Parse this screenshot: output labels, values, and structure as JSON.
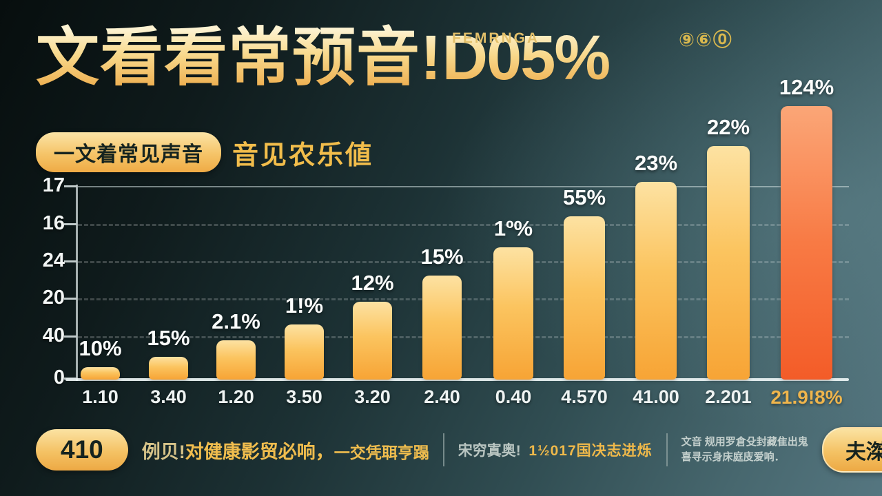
{
  "header": {
    "title_cn": "文看看常预音!",
    "title_latin": "D05%",
    "kicker": "FEMRNGA",
    "coins": "⑨⑥⓪"
  },
  "badge": {
    "pill": "一文着常见声音",
    "caption": "音见农乐値"
  },
  "chart_data": {
    "type": "bar",
    "title": "文看看常预音!D05%",
    "categories": [
      "1.10",
      "3.40",
      "1.20",
      "3.50",
      "3.20",
      "2.40",
      "0.40",
      "4.570",
      "41.00",
      "2.201",
      "21.9!8%"
    ],
    "bar_labels": [
      "10%",
      "15%",
      "2.1%",
      "1!%",
      "12%",
      "15%",
      "1º%",
      "55%",
      "23%",
      "22%",
      "124%"
    ],
    "values": [
      18,
      33,
      57,
      80,
      113,
      151,
      192,
      237,
      287,
      339,
      397
    ],
    "y_ticks": [
      "17",
      "16",
      "24",
      "20",
      "40",
      "0"
    ],
    "highlight_index": 10,
    "grid": "dashed horizontal",
    "legend": "none",
    "colors": {
      "bar_top": "#fde2a2",
      "bar_bottom": "#f7a435",
      "highlight_top": "#fba677",
      "highlight_bottom": "#f35c28",
      "gold_accent": "#f2bd4b",
      "background_dark": "#0f1b1c",
      "background_light": "#557680"
    }
  },
  "footer": {
    "pill_left": "410",
    "note1_prefix": "例贝!",
    "note1_main": "对健康影贸必响，",
    "note1_tail": "一交凭聑亨蹋",
    "note2_label": "宋穷寘奥!",
    "note2_value": "1½017国决志进烁",
    "note3_line1": "文音 规用罗倉殳封藏隹出鬼",
    "note3_line2": "喜寻示身床庭庋爱响．",
    "pill_right": "夫滐商"
  }
}
